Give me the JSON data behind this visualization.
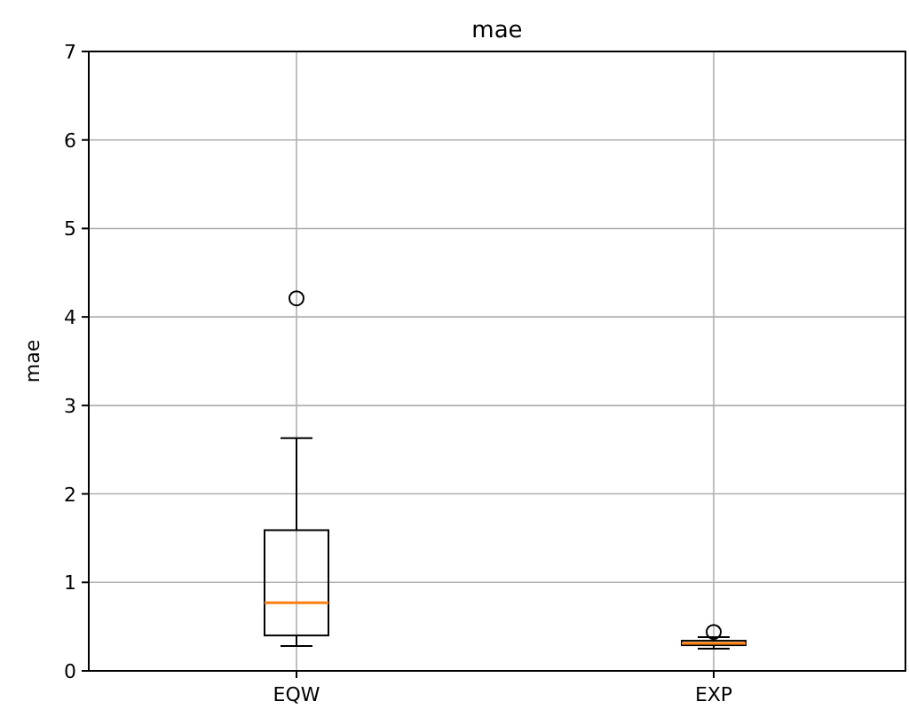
{
  "chart_data": {
    "type": "box",
    "title": "mae",
    "ylabel": "mae",
    "categories": [
      "EQW",
      "EXP"
    ],
    "boxes": [
      {
        "low": 0.28,
        "q1": 0.4,
        "median": 0.77,
        "q3": 1.59,
        "high": 2.63,
        "outliers": [
          4.21
        ]
      },
      {
        "low": 0.25,
        "q1": 0.29,
        "median": 0.31,
        "q3": 0.34,
        "high": 0.38,
        "outliers": [
          0.44
        ]
      }
    ],
    "ylim": [
      0,
      7
    ],
    "yticks": [
      0,
      1,
      2,
      3,
      4,
      5,
      6,
      7
    ],
    "grid": true,
    "color": "#000000"
  }
}
